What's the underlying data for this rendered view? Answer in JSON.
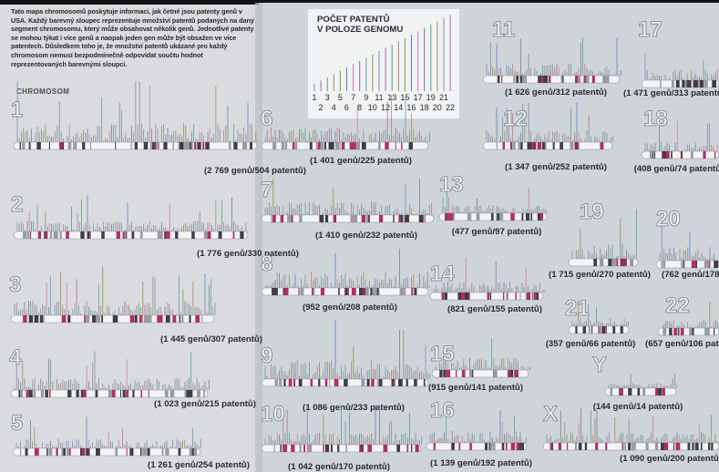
{
  "intro": "Tato mapa chromosomů poskytuje informaci, jak četné jsou patenty genů v USA. Každý barevný sloupec reprezentuje množství patentů podaných na daný segment chromosomu, který může obsahovat několik genů. Jednotlivé patenty se mohou týkat i více genů a naopak jeden gen může být obsažen ve více patentech. Důsledkem toho je, že množství patentů ukázané pro každý chromosom nemusí bezpodmínečně odpovídat součtu hodnot reprezentovaných barevnými sloupci.",
  "axis_label": "CHROMOSOM",
  "legend": {
    "title_lines": [
      "POČET PATENTŮ",
      "V POLOZE GENOMU"
    ],
    "odd": [
      1,
      3,
      5,
      7,
      9,
      11,
      13,
      15,
      17,
      19,
      21
    ],
    "even": [
      2,
      4,
      6,
      8,
      10,
      12,
      14,
      16,
      18,
      20,
      22
    ]
  },
  "chromosomes": [
    {
      "label": "1",
      "caption": "(2 769 genů/504 patentů)"
    },
    {
      "label": "2",
      "caption": "(1 776 genů/330 patentů)"
    },
    {
      "label": "3",
      "caption": "(1 445 genů/307 patentů)"
    },
    {
      "label": "4",
      "caption": "(1 023 genů/215 patentů)"
    },
    {
      "label": "5",
      "caption": "(1 261 genů/254 patentů)"
    },
    {
      "label": "6",
      "caption": "(1 401 genů/225 patentů)"
    },
    {
      "label": "7",
      "caption": "(1 410 genů/232 patentů)"
    },
    {
      "label": "8",
      "caption": "(952 genů/208 patentů)"
    },
    {
      "label": "9",
      "caption": "(1 086 genů/233 patentů)"
    },
    {
      "label": "10",
      "caption": "(1 042 genů/170 patentů)"
    },
    {
      "label": "11",
      "caption": "(1 626 genů/312 patentů)"
    },
    {
      "label": "12",
      "caption": "(1 347 genů/252 patentů)"
    },
    {
      "label": "13",
      "caption": "(477 genů/97 patentů)"
    },
    {
      "label": "14",
      "caption": "(821 genů/155 patentů)"
    },
    {
      "label": "15",
      "caption": "(915 genů/141 patentů)"
    },
    {
      "label": "16",
      "caption": "(1 139 genů/192 patentů)"
    },
    {
      "label": "17",
      "caption": "(1 471 genů/313 patentů)"
    },
    {
      "label": "18",
      "caption": "(408 genů/74 patentů)"
    },
    {
      "label": "19",
      "caption": "(1 715 genů/270 patentů)"
    },
    {
      "label": "20",
      "caption": "(762 genů/178 patentů)"
    },
    {
      "label": "21",
      "caption": "(357 genů/66 patentů)"
    },
    {
      "label": "22",
      "caption": "(657 genů/106 patentů)"
    },
    {
      "label": "X",
      "caption": "(1 090 genů/200 patentů)"
    },
    {
      "label": "Y",
      "caption": "(144 genů/14 patentů)"
    }
  ]
}
